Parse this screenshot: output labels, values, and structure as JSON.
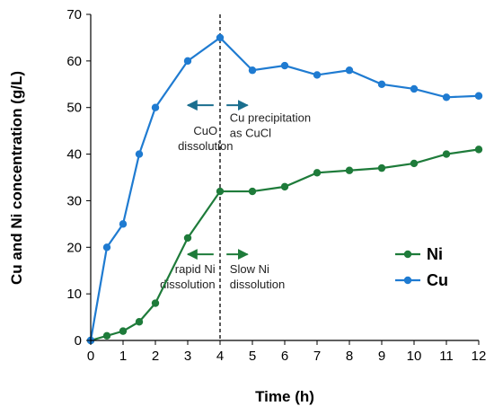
{
  "chart_data": {
    "type": "line",
    "xlabel": "Time (h)",
    "ylabel": "Cu and Ni concentration  (g/L)",
    "xlim": [
      0,
      12
    ],
    "ylim": [
      0,
      70
    ],
    "x_ticks": [
      "0",
      "1",
      "2",
      "3",
      "4",
      "5",
      "6",
      "7",
      "8",
      "9",
      "10",
      "11",
      "12"
    ],
    "y_ticks": [
      "0",
      "10",
      "20",
      "30",
      "40",
      "50",
      "60",
      "70"
    ],
    "grid": false,
    "legend": "lower-right",
    "series": [
      {
        "name": "Ni",
        "color": "#1e7b3a",
        "x": [
          0,
          0.5,
          1,
          1.5,
          2,
          3,
          4,
          5,
          6,
          7,
          8,
          9,
          10,
          11,
          12
        ],
        "y": [
          0,
          1,
          2,
          4,
          8,
          22,
          32,
          32,
          33,
          36,
          36.5,
          37,
          38,
          40,
          41
        ]
      },
      {
        "name": "Cu",
        "color": "#1f7bd1",
        "x": [
          0,
          0.5,
          1,
          1.5,
          2,
          3,
          4,
          5,
          6,
          7,
          8,
          9,
          10,
          11,
          12
        ],
        "y": [
          0,
          20,
          25,
          40,
          50,
          60,
          65,
          58,
          59,
          57,
          58,
          55,
          54,
          52.2,
          52.5
        ]
      }
    ],
    "vline_x": 4,
    "annotations": [
      {
        "lines": [
          "CuO",
          "dissolution"
        ],
        "x": 3.55,
        "y": 44.2,
        "anchor": "middle"
      },
      {
        "lines": [
          "Cu precipitation",
          "as CuCl"
        ],
        "x": 4.3,
        "y": 47,
        "anchor": "start"
      },
      {
        "lines": [
          "rapid Ni",
          "dissolution"
        ],
        "x": 3.85,
        "y": 14.5,
        "anchor": "end"
      },
      {
        "lines": [
          "Slow Ni",
          "dissolution"
        ],
        "x": 4.3,
        "y": 14.5,
        "anchor": "start"
      }
    ],
    "arrows": [
      {
        "from": 3.0,
        "to": 3.8,
        "y": 50.5,
        "color": "#1a6e8e"
      },
      {
        "from": 4.2,
        "to": 4.85,
        "y": 50.5,
        "color": "#1a6e8e"
      },
      {
        "from": 3.0,
        "to": 3.8,
        "y": 18.5,
        "color": "#1e7b3a"
      },
      {
        "from": 4.2,
        "to": 4.85,
        "y": 18.5,
        "color": "#1e7b3a"
      }
    ]
  }
}
